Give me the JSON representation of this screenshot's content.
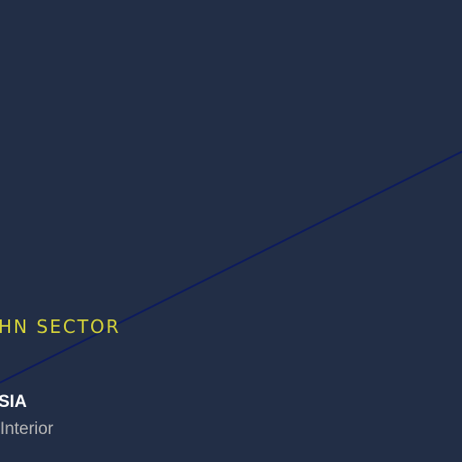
{
  "map": {
    "background_color": "#222e46",
    "route_color": "#0c1a5e",
    "sector": {
      "label": "HN SECTOR",
      "color": "#d4d23a"
    },
    "place": {
      "name": "SIA",
      "subtitle": "Interior"
    }
  }
}
